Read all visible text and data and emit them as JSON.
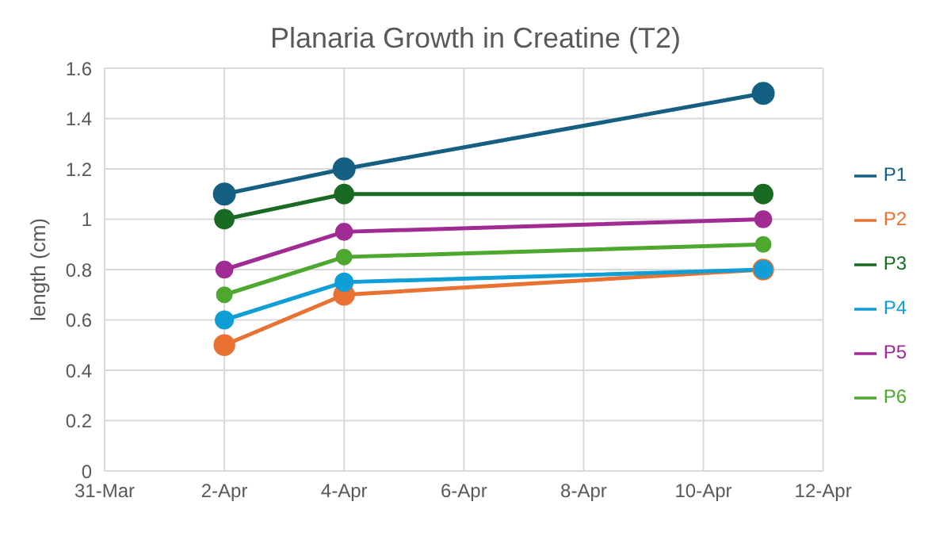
{
  "chart_data": {
    "type": "line",
    "title": "Planaria Growth in Creatine (T2)",
    "ylabel": "length (cm)",
    "x": [
      "--04-02",
      "--04-04",
      "--04-11"
    ],
    "series": [
      {
        "name": "P1",
        "color": "#156082",
        "values": [
          1.1,
          1.2,
          1.5
        ]
      },
      {
        "name": "P2",
        "color": "#e97132",
        "values": [
          0.5,
          0.7,
          0.8
        ]
      },
      {
        "name": "P3",
        "color": "#196b24",
        "values": [
          1.0,
          1.1,
          1.1
        ]
      },
      {
        "name": "P4",
        "color": "#0f9ed5",
        "values": [
          0.6,
          0.75,
          0.8
        ]
      },
      {
        "name": "P5",
        "color": "#a02b93",
        "values": [
          0.8,
          0.95,
          1.0
        ]
      },
      {
        "name": "P6",
        "color": "#4ea72e",
        "values": [
          0.7,
          0.85,
          0.9
        ]
      }
    ],
    "xlim": [
      "--03-31",
      "--04-12"
    ],
    "xticks": [
      {
        "value": "--03-31",
        "label": "31-Mar"
      },
      {
        "value": "--04-02",
        "label": "2-Apr"
      },
      {
        "value": "--04-04",
        "label": "4-Apr"
      },
      {
        "value": "--04-06",
        "label": "6-Apr"
      },
      {
        "value": "--04-08",
        "label": "8-Apr"
      },
      {
        "value": "--04-10",
        "label": "10-Apr"
      },
      {
        "value": "--04-12",
        "label": "12-Apr"
      }
    ],
    "ylim": [
      0,
      1.6
    ],
    "yticks": [
      0,
      0.2,
      0.4,
      0.6,
      0.8,
      1,
      1.2,
      1.4,
      1.6
    ],
    "grid": true,
    "legend": "right",
    "marker": "circle",
    "line_style": "solid"
  }
}
